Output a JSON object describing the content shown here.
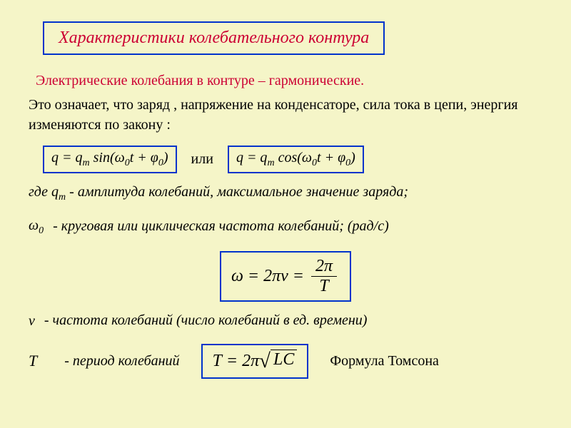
{
  "colors": {
    "background": "#f5f5c8",
    "border": "#0033cc",
    "red_text": "#cc0033",
    "black_text": "#000000"
  },
  "typography": {
    "title_fontsize": 24,
    "body_fontsize": 20,
    "formula_fontsize": 20,
    "large_formula_fontsize": 24,
    "font_family": "Times New Roman"
  },
  "title": "Характеристики колебательного контура",
  "subtitle": "Электрические колебания в контуре – гармонические.",
  "intro": "Это означает, что заряд , напряжение на конденсаторе, сила тока в цепи, энергия изменяются по закону :",
  "formula_sin": "q = q_m sin(ω_0 t + φ_0)",
  "formula_cos": "q = q_m cos(ω_0 t + φ_0)",
  "or_word": "или",
  "where_qm": "где q_m",
  "qm_desc": " - амплитуда колебаний, максимальное значение заряда;",
  "omega0_sym": "ω_0",
  "omega_desc": " - круговая или циклическая частота колебаний; (рад/с)",
  "omega_formula": "ω = 2πν = 2π / T",
  "nu_sym": "ν",
  "nu_desc": " - частота колебаний (число колебаний в ед. времени)",
  "T_sym": "T",
  "T_desc": " - период колебаний",
  "thomson_formula": "T = 2π√(LC)",
  "thomson_label": "Формула Томсона"
}
